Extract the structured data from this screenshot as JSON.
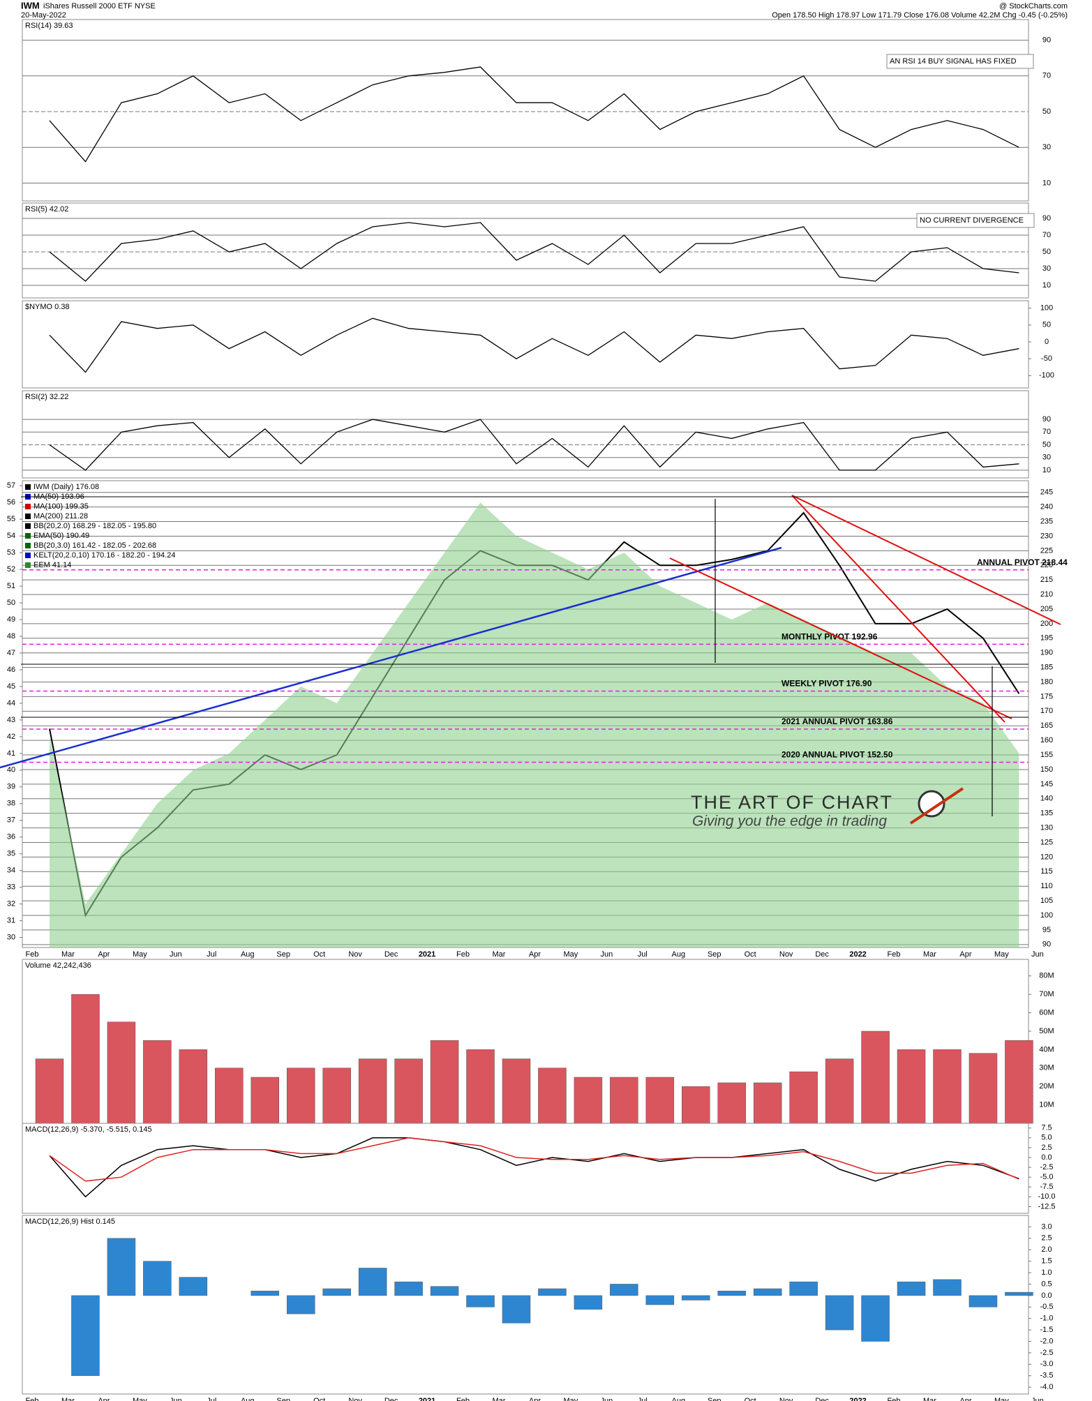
{
  "header": {
    "symbol": "IWM",
    "name": "iShares Russell 2000 ETF  NYSE",
    "date": "20-May-2022",
    "source": "@ StockCharts.com",
    "quote": "Open 178.50  High 178.97  Low 171.79  Close 176.08  Volume 42.2M  Chg -0.45 (-0.25%)"
  },
  "logo": {
    "title": "THE ART OF CHART",
    "tagline": "Giving you the edge in trading"
  },
  "chart_data": [
    {
      "type": "line",
      "title": "RSI(14) 39.63",
      "annotation": "AN RSI 14 BUY SIGNAL HAS FIXED",
      "color": "#000000",
      "ylim": [
        0,
        100
      ],
      "yticks": [
        10,
        30,
        50,
        70,
        90
      ],
      "grid": true,
      "values": [
        45,
        22,
        55,
        60,
        70,
        55,
        60,
        45,
        55,
        65,
        70,
        72,
        75,
        55,
        55,
        45,
        60,
        40,
        50,
        55,
        60,
        70,
        40,
        30,
        40,
        45,
        40,
        30,
        null
      ]
    },
    {
      "type": "line",
      "title": "RSI(5) 42.02",
      "annotation": "NO CURRENT DIVERGENCE",
      "color": "#000000",
      "ylim": [
        0,
        100
      ],
      "yticks": [
        10,
        30,
        50,
        70,
        90
      ],
      "grid": true,
      "values": [
        50,
        15,
        60,
        65,
        75,
        50,
        60,
        30,
        60,
        80,
        85,
        80,
        85,
        40,
        60,
        35,
        70,
        25,
        60,
        60,
        70,
        80,
        20,
        15,
        50,
        55,
        30,
        25,
        null
      ]
    },
    {
      "type": "line",
      "title": "$NYMO 0.38",
      "color": "#000000",
      "ylim": [
        -120,
        120
      ],
      "yticks": [
        100,
        50,
        0,
        -50,
        -100
      ],
      "grid": false,
      "values": [
        20,
        -90,
        60,
        40,
        50,
        -20,
        30,
        -40,
        20,
        70,
        40,
        30,
        20,
        -50,
        10,
        -40,
        30,
        -60,
        20,
        10,
        30,
        40,
        -80,
        -70,
        20,
        10,
        -40,
        -20,
        null
      ]
    },
    {
      "type": "line",
      "title": "RSI(2) 32.22",
      "color": "#000000",
      "ylim": [
        0,
        100
      ],
      "yticks": [
        10,
        30,
        50,
        70,
        90
      ],
      "grid": true,
      "values": [
        50,
        10,
        70,
        80,
        85,
        30,
        75,
        20,
        70,
        90,
        80,
        70,
        90,
        20,
        60,
        15,
        80,
        15,
        70,
        60,
        75,
        85,
        10,
        10,
        60,
        70,
        15,
        20,
        null
      ]
    },
    {
      "type": "price",
      "ylim": [
        89,
        249
      ],
      "yticks": [
        90,
        95,
        100,
        105,
        110,
        115,
        120,
        125,
        130,
        135,
        140,
        145,
        150,
        155,
        160,
        165,
        170,
        175,
        180,
        185,
        190,
        195,
        200,
        205,
        210,
        215,
        220,
        225,
        230,
        235,
        240,
        245
      ],
      "y2lim": [
        29.4,
        57.3
      ],
      "y2ticks": [
        30,
        31,
        32,
        33,
        34,
        35,
        36,
        37,
        38,
        39,
        40,
        41,
        42,
        43,
        44,
        45,
        46,
        47,
        48,
        49,
        50,
        51,
        52,
        53,
        54,
        55,
        56,
        57
      ],
      "grid": true,
      "categories": [
        "Feb",
        "Mar",
        "Apr",
        "May",
        "Jun",
        "Jul",
        "Aug",
        "Sep",
        "Oct",
        "Nov",
        "Dec",
        "2021",
        "Feb",
        "Mar",
        "Apr",
        "May",
        "Jun",
        "Jul",
        "Aug",
        "Sep",
        "Oct",
        "Nov",
        "Dec",
        "2022",
        "Feb",
        "Mar",
        "Apr",
        "May",
        "Jun"
      ],
      "series": [
        {
          "name": "IWM (Daily) 176.08",
          "color": "#000000",
          "values": [
            164,
            100,
            120,
            130,
            143,
            145,
            155,
            150,
            155,
            175,
            195,
            215,
            225,
            220,
            220,
            215,
            228,
            220,
            220,
            222,
            225,
            238,
            220,
            200,
            200,
            205,
            195,
            176,
            null
          ]
        },
        {
          "name": "EEM 41.14",
          "color": "#8fd18f",
          "axis": "y2",
          "values": [
            42,
            32,
            35,
            38,
            40,
            41,
            43,
            45,
            44,
            47,
            50,
            53,
            56,
            54,
            53,
            52,
            53,
            51,
            50,
            49,
            50,
            49,
            48,
            47,
            47,
            45,
            44,
            41,
            null
          ]
        }
      ],
      "legend": [
        {
          "text": "MA(50) 193.96",
          "color": "#0000cc"
        },
        {
          "text": "MA(100) 199.35",
          "color": "#cc0000"
        },
        {
          "text": "MA(200) 211.28",
          "color": "#000000"
        },
        {
          "text": "BB(20,2.0) 168.29 - 182.05 - 195.80",
          "color": "#000000"
        },
        {
          "text": "EMA(50) 190.49",
          "color": "#006600"
        },
        {
          "text": "BB(20,3.0) 161.42 - 182.05 - 202.68",
          "color": "#006600"
        },
        {
          "text": "KELT(20,2.0,10) 170.16 - 182.20 - 194.24",
          "color": "#0000cc"
        }
      ],
      "pivots": [
        {
          "label": "ANNUAL PIVOT 218.44",
          "value": 218.44
        },
        {
          "label": "MONTHLY PIVOT 192.96",
          "value": 192.96
        },
        {
          "label": "WEEKLY PIVOT 176.90",
          "value": 176.9
        },
        {
          "label": "2021 ANNUAL PIVOT 163.86",
          "value": 163.86
        },
        {
          "label": "2020 ANNUAL PIVOT 152.50",
          "value": 152.5
        }
      ]
    },
    {
      "type": "bar",
      "title": "Volume 42,242,436",
      "color": "#d9565e",
      "ylim": [
        0,
        89
      ],
      "yticks": [
        {
          "value": 10,
          "label": "10M"
        },
        {
          "value": 20,
          "label": "20M"
        },
        {
          "value": 30,
          "label": "30M"
        },
        {
          "value": 40,
          "label": "40M"
        },
        {
          "value": 50,
          "label": "50M"
        },
        {
          "value": 60,
          "label": "60M"
        },
        {
          "value": 70,
          "label": "70M"
        },
        {
          "value": 80,
          "label": "80M"
        }
      ],
      "grid": false,
      "values": [
        35,
        70,
        55,
        45,
        40,
        30,
        25,
        30,
        30,
        35,
        35,
        45,
        40,
        35,
        30,
        25,
        25,
        25,
        20,
        22,
        22,
        28,
        35,
        50,
        40,
        40,
        38,
        45,
        null
      ]
    },
    {
      "type": "lines",
      "title": "MACD(12,26,9) -5.370, -5.515, 0.145",
      "ylim": [
        -14.2,
        8.7
      ],
      "yticks": [
        7.5,
        {
          "value": 5,
          "label": "5.0"
        },
        2.5,
        {
          "value": 0,
          "label": "0.0"
        },
        -2.5,
        {
          "value": -5,
          "label": "-5.0"
        },
        -7.5,
        {
          "value": -10,
          "label": "-10.0"
        },
        -12.5
      ],
      "grid": false,
      "series": [
        {
          "color": "#000000",
          "values": [
            0.5,
            -10,
            -2,
            2,
            3,
            2,
            2,
            0,
            1,
            5,
            5,
            4,
            2,
            -2,
            0,
            -1,
            1,
            -1,
            0,
            0,
            1,
            2,
            -3,
            -6,
            -3,
            -1,
            -2,
            -5.37,
            null
          ]
        },
        {
          "color": "#e02020",
          "values": [
            0.5,
            -6,
            -5,
            0,
            2,
            2,
            2,
            1,
            1,
            3,
            5,
            4,
            3,
            0,
            -0.5,
            -0.5,
            0.5,
            -0.5,
            0,
            0,
            0.5,
            1.5,
            -1,
            -4,
            -4,
            -2,
            -1.5,
            -5.515,
            null
          ]
        }
      ]
    },
    {
      "type": "bar",
      "title": "MACD(12,26,9) Hist 0.145",
      "color": "#2f86d0",
      "ylim": [
        -4.3,
        3.5
      ],
      "yticks": [
        {
          "value": 3,
          "label": "3.0"
        },
        2.5,
        {
          "value": 2,
          "label": "2.0"
        },
        1.5,
        {
          "value": 1,
          "label": "1.0"
        },
        0.5,
        {
          "value": 0,
          "label": "0.0"
        },
        -0.5,
        {
          "value": -1,
          "label": "-1.0"
        },
        -1.5,
        {
          "value": -2,
          "label": "-2.0"
        },
        -2.5,
        {
          "value": -3,
          "label": "-3.0"
        },
        -3.5,
        {
          "value": -4,
          "label": "-4.0"
        }
      ],
      "grid": false,
      "categories": [
        "Feb",
        "Mar",
        "Apr",
        "May",
        "Jun",
        "Jul",
        "Aug",
        "Sep",
        "Oct",
        "Nov",
        "Dec",
        "2021",
        "Feb",
        "Mar",
        "Apr",
        "May",
        "Jun",
        "Jul",
        "Aug",
        "Sep",
        "Oct",
        "Nov",
        "Dec",
        "2022",
        "Feb",
        "Mar",
        "Apr",
        "May",
        "Jun"
      ],
      "values": [
        0,
        -3.5,
        2.5,
        1.5,
        0.8,
        0,
        0.2,
        -0.8,
        0.3,
        1.2,
        0.6,
        0.4,
        -0.5,
        -1.2,
        0.3,
        -0.6,
        0.5,
        -0.4,
        -0.2,
        0.2,
        0.3,
        0.6,
        -1.5,
        -2,
        0.6,
        0.7,
        -0.5,
        0.145,
        null
      ]
    }
  ]
}
